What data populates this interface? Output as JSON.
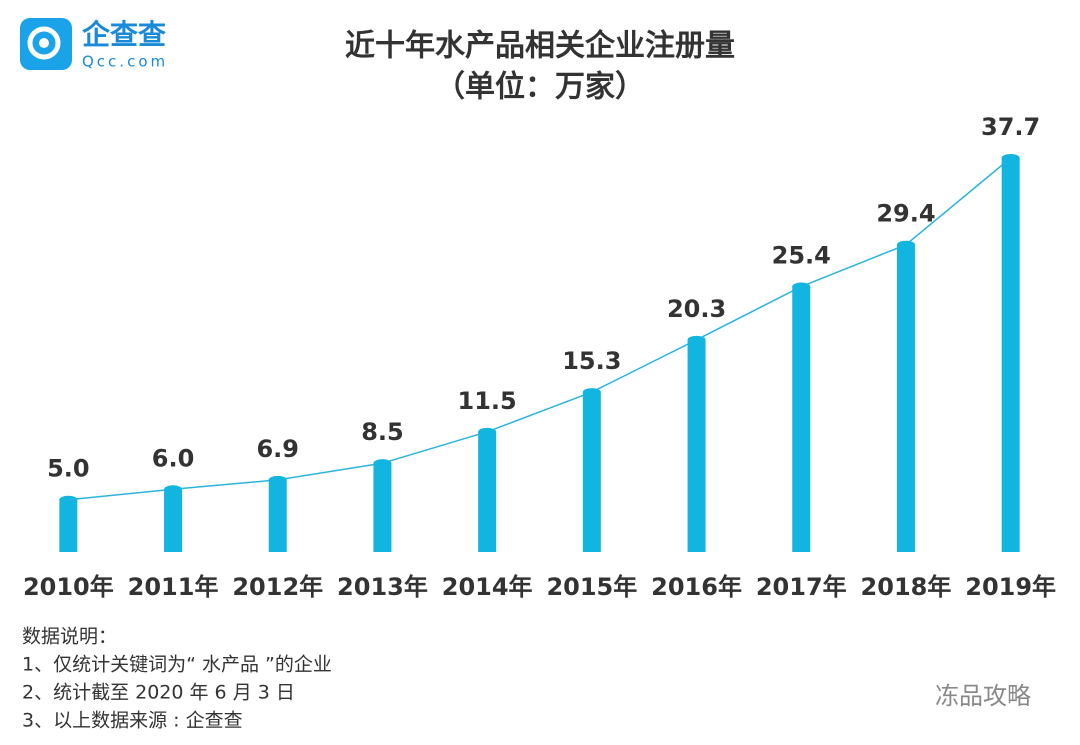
{
  "logo": {
    "name": "企查查",
    "site": "Qcc.com"
  },
  "chart_data": {
    "type": "bar_line",
    "title": "近十年水产品相关企业注册量",
    "subtitle": "（单位：万家）",
    "categories": [
      "2010年",
      "2011年",
      "2012年",
      "2013年",
      "2014年",
      "2015年",
      "2016年",
      "2017年",
      "2018年",
      "2019年"
    ],
    "values": [
      5.0,
      6.0,
      6.9,
      8.5,
      11.5,
      15.3,
      20.3,
      25.4,
      29.4,
      37.7
    ],
    "value_labels": [
      "5.0",
      "6.0",
      "6.9",
      "8.5",
      "11.5",
      "15.3",
      "20.3",
      "25.4",
      "29.4",
      "37.7"
    ],
    "color": "#12b5e0",
    "line_color": "#2bb4dc"
  },
  "notes": [
    "数据说明：",
    "1、仅统计关键词为“ 水产品 ”的企业",
    "2、统计截至 2020 年 6 月 3 日",
    "3、以上数据来源 : 企查查"
  ],
  "watermark": "冻品攻略"
}
